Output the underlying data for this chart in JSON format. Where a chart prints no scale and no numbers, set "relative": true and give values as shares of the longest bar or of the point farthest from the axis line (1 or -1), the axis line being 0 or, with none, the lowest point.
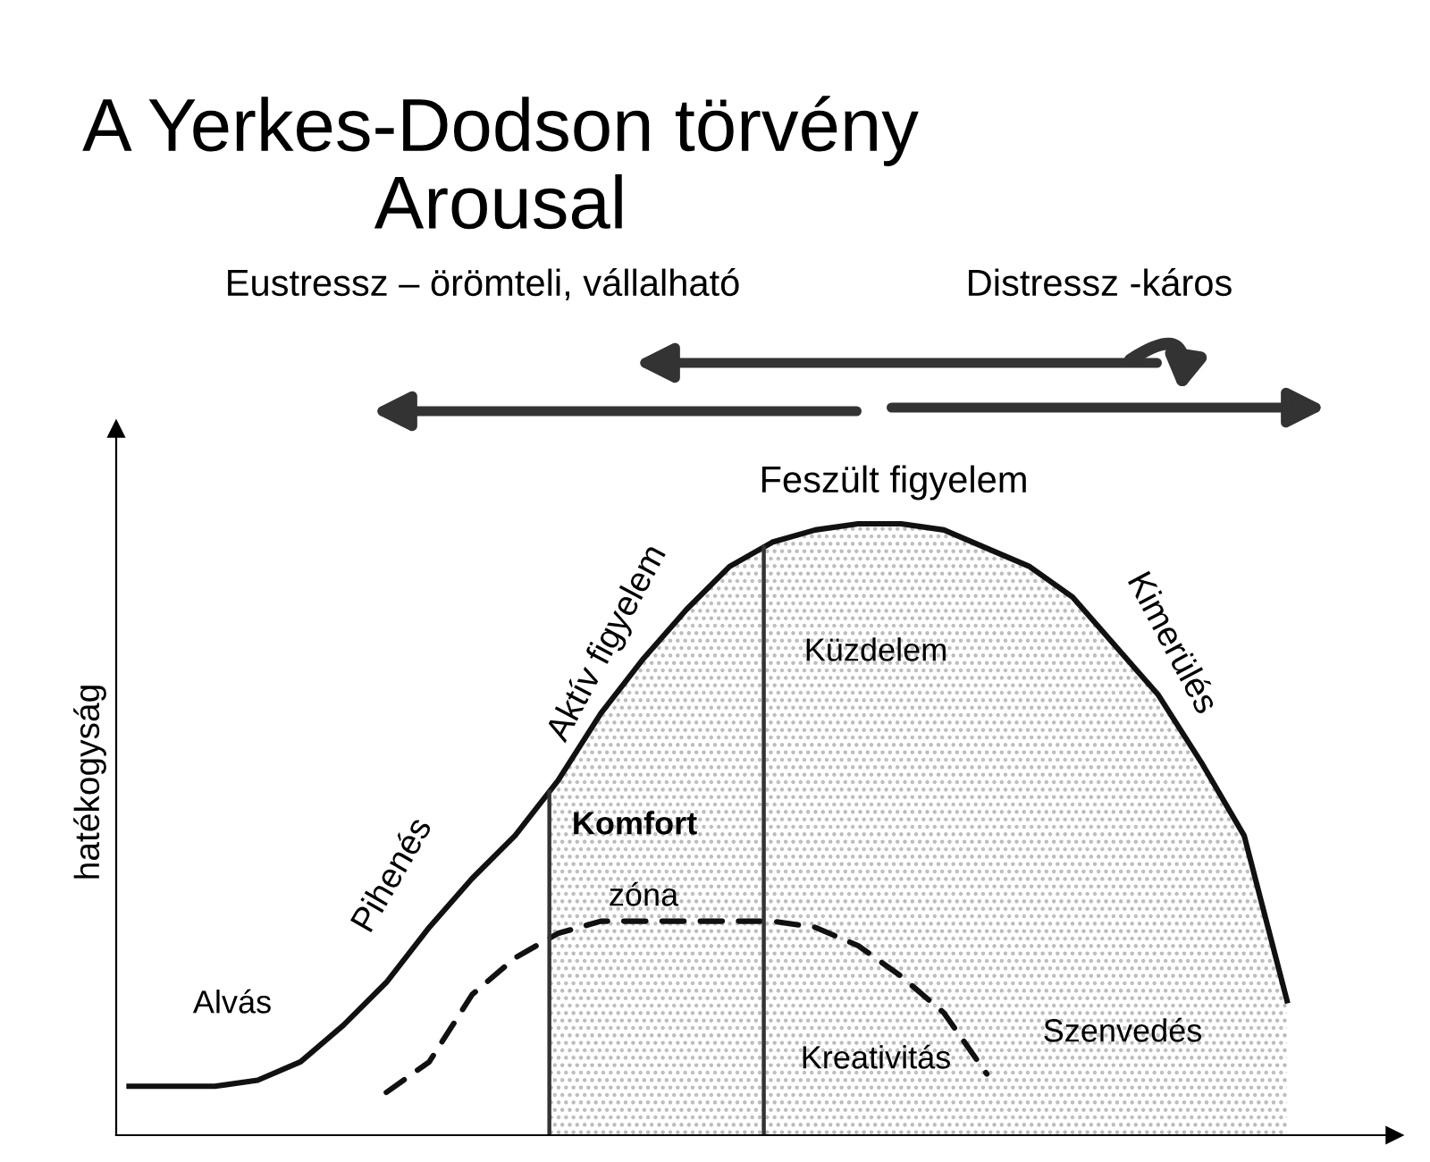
{
  "chart_data": {
    "type": "line",
    "title": "A Yerkes-Dodson törvény\nArousal",
    "ylabel": "hatékogyság",
    "relative": true,
    "marker": "none",
    "categories": [
      null,
      null,
      null,
      null,
      null,
      null,
      null,
      null,
      null,
      null,
      null,
      null,
      null,
      null,
      null,
      null,
      null,
      null,
      null,
      null,
      null,
      null,
      null,
      null,
      null,
      null,
      null,
      null,
      null
    ],
    "series": [
      {
        "color": "#111111",
        "line_style": "solid",
        "values": [
          0.08,
          0.08,
          0.08,
          0.09,
          0.12,
          0.18,
          0.25,
          0.34,
          0.42,
          0.49,
          0.58,
          0.69,
          0.78,
          0.86,
          0.93,
          0.97,
          0.99,
          1,
          1,
          0.99,
          0.96,
          0.93,
          0.88,
          0.8,
          0.72,
          0.61,
          0.49,
          0.22,
          null
        ]
      },
      {
        "color": "#111111",
        "line_style": "dashed",
        "values": [
          null,
          null,
          null,
          null,
          null,
          null,
          0.07,
          0.12,
          0.23,
          0.29,
          0.33,
          0.35,
          0.35,
          0.35,
          0.35,
          0.35,
          0.34,
          0.31,
          0.26,
          0.2,
          0.1,
          null,
          null,
          null,
          null,
          null,
          null,
          null,
          null
        ]
      }
    ],
    "annotations": [
      "Alvás",
      "Pihenés",
      "Aktív figyelem",
      "Feszült figyelem",
      "Küzdelem",
      "Kimerülés",
      "Komfort",
      "zóna",
      "Kreativitás",
      "Szenvedés",
      "Eustressz – örömteli, vállalható",
      "Distressz -káros"
    ]
  }
}
